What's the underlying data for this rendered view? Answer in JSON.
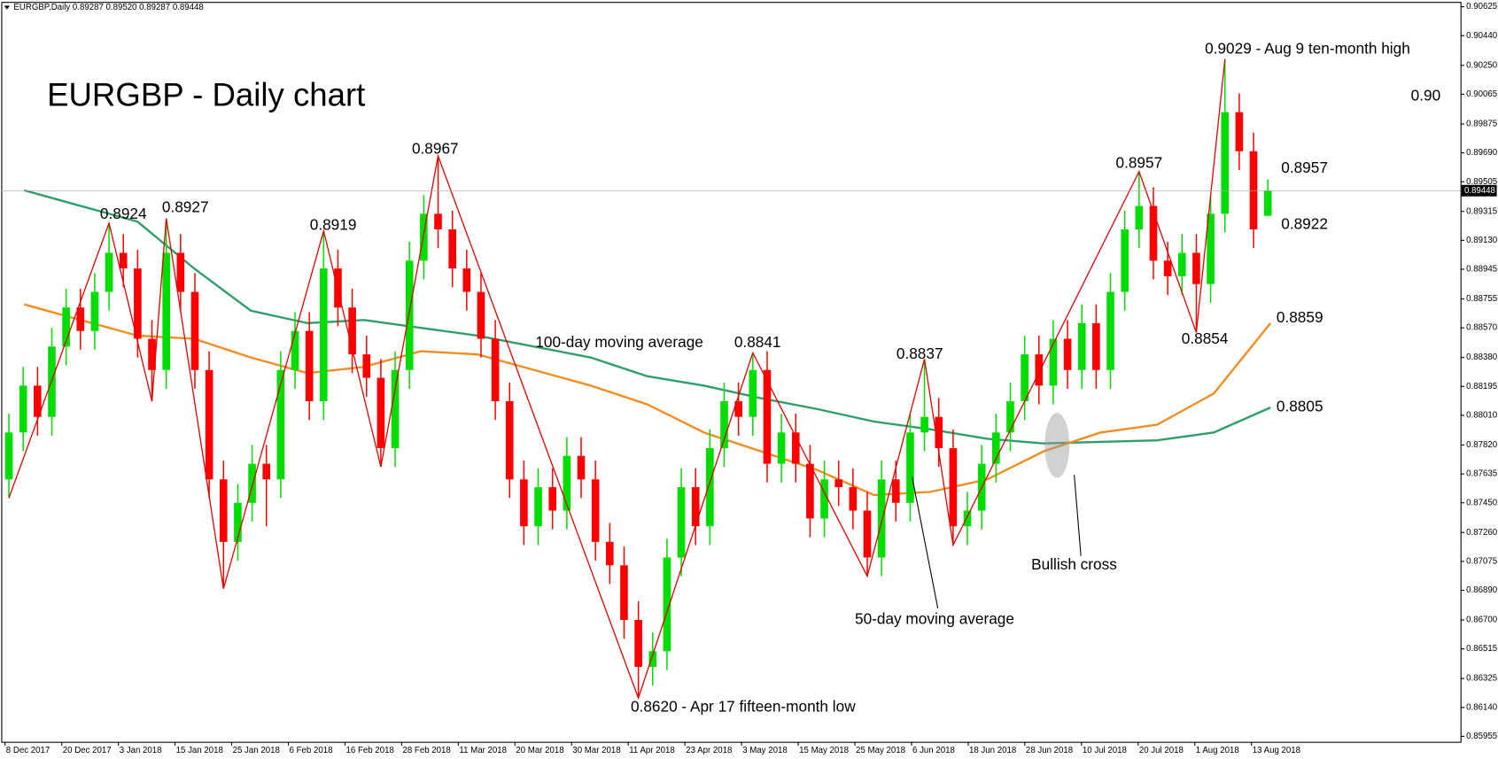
{
  "chart_data": {
    "type": "candlestick",
    "header": "EURGBP,Daily  0.89287 0.89520 0.89287 0.89448",
    "title": "EURGBP - Daily chart",
    "ylim": [
      0.8592,
      0.9065
    ],
    "yticks": [
      0.90625,
      {
        "value": 0.9044,
        "label": "0.90440"
      },
      {
        "value": 0.9025,
        "label": "0.90250"
      },
      0.90065,
      0.89875,
      {
        "value": 0.8969,
        "label": "0.89690"
      },
      0.89505,
      0.89315,
      {
        "value": 0.8913,
        "label": "0.89130"
      },
      0.88945,
      0.88755,
      {
        "value": 0.8857,
        "label": "0.88570"
      },
      {
        "value": 0.8838,
        "label": "0.88380"
      },
      0.88195,
      {
        "value": 0.8801,
        "label": "0.88010"
      },
      {
        "value": 0.8782,
        "label": "0.87820"
      },
      0.87635,
      {
        "value": 0.8745,
        "label": "0.87450"
      },
      {
        "value": 0.8726,
        "label": "0.87260"
      },
      0.87075,
      {
        "value": 0.8689,
        "label": "0.86890"
      },
      {
        "value": 0.867,
        "label": "0.86700"
      },
      0.86515,
      0.86325,
      {
        "value": 0.8614,
        "label": "0.86140"
      },
      0.85955
    ],
    "last_price": 0.89448,
    "categories": [
      "8 Dec 2017",
      "20 Dec 2017",
      "3 Jan 2018",
      "15 Jan 2018",
      "25 Jan 2018",
      "6 Feb 2018",
      "16 Feb 2018",
      "28 Feb 2018",
      "11 Mar 2018",
      "20 Mar 2018",
      "30 Mar 2018",
      "11 Apr 2018",
      "23 Apr 2018",
      "3 May 2018",
      "15 May 2018",
      "25 May 2018",
      "6 Jun 2018",
      "18 Jun 2018",
      "28 Jun 2018",
      "10 Jul 2018",
      "20 Jul 2018",
      "1 Aug 2018",
      "13 Aug 2018"
    ],
    "candles": {
      "open": [
        0.876,
        0.879,
        0.882,
        0.88,
        0.8845,
        0.887,
        0.8855,
        0.888,
        0.8905,
        0.8895,
        0.885,
        0.883,
        0.8905,
        0.888,
        0.883,
        0.876,
        0.872,
        0.8745,
        0.877,
        0.876,
        0.883,
        0.8855,
        0.881,
        0.8895,
        0.887,
        0.884,
        0.8825,
        0.878,
        0.883,
        0.89,
        0.893,
        0.892,
        0.8895,
        0.888,
        0.885,
        0.881,
        0.876,
        0.873,
        0.8755,
        0.874,
        0.8775,
        0.876,
        0.872,
        0.8705,
        0.867,
        0.864,
        0.865,
        0.871,
        0.8755,
        0.873,
        0.878,
        0.881,
        0.88,
        0.883,
        0.877,
        0.879,
        0.877,
        0.8735,
        0.876,
        0.8755,
        0.874,
        0.871,
        0.876,
        0.8745,
        0.879,
        0.88,
        0.878,
        0.873,
        0.874,
        0.877,
        0.879,
        0.881,
        0.884,
        0.882,
        0.885,
        0.883,
        0.886,
        0.883,
        0.888,
        0.892,
        0.8935,
        0.89,
        0.889,
        0.8905,
        0.8885,
        0.893,
        0.8995,
        0.897,
        0.89287
      ],
      "high": [
        0.8802,
        0.8832,
        0.8832,
        0.8857,
        0.8882,
        0.8882,
        0.8892,
        0.8924,
        0.8917,
        0.8907,
        0.8862,
        0.8927,
        0.8917,
        0.8892,
        0.8842,
        0.8772,
        0.8757,
        0.8782,
        0.8782,
        0.8842,
        0.8867,
        0.8867,
        0.8919,
        0.8907,
        0.8882,
        0.8852,
        0.8837,
        0.8842,
        0.8912,
        0.8942,
        0.8967,
        0.8932,
        0.8907,
        0.8892,
        0.8862,
        0.8822,
        0.8772,
        0.8767,
        0.8767,
        0.8787,
        0.8787,
        0.8772,
        0.8732,
        0.8717,
        0.8682,
        0.8662,
        0.8722,
        0.8767,
        0.8767,
        0.8792,
        0.8822,
        0.8822,
        0.8841,
        0.8842,
        0.8802,
        0.8802,
        0.8782,
        0.8772,
        0.8772,
        0.8767,
        0.8752,
        0.8772,
        0.8772,
        0.8802,
        0.8837,
        0.8812,
        0.8792,
        0.8752,
        0.8782,
        0.8802,
        0.8822,
        0.8852,
        0.8852,
        0.8862,
        0.8862,
        0.8872,
        0.8872,
        0.8892,
        0.8932,
        0.8957,
        0.8947,
        0.8912,
        0.8917,
        0.8917,
        0.8942,
        0.9029,
        0.9007,
        0.8982,
        0.8952
      ],
      "low": [
        0.8748,
        0.8778,
        0.8788,
        0.8788,
        0.8833,
        0.8843,
        0.8843,
        0.8868,
        0.8883,
        0.8838,
        0.881,
        0.8818,
        0.8868,
        0.8818,
        0.8748,
        0.869,
        0.8708,
        0.8733,
        0.873,
        0.8748,
        0.8818,
        0.8798,
        0.8798,
        0.8858,
        0.8828,
        0.8813,
        0.8768,
        0.8768,
        0.8818,
        0.8888,
        0.8908,
        0.8883,
        0.8868,
        0.8838,
        0.8798,
        0.8748,
        0.8718,
        0.8718,
        0.8728,
        0.8728,
        0.8748,
        0.8708,
        0.8693,
        0.8658,
        0.862,
        0.8628,
        0.8638,
        0.8698,
        0.8718,
        0.8718,
        0.8768,
        0.8788,
        0.8788,
        0.8758,
        0.8758,
        0.8758,
        0.8723,
        0.8723,
        0.8743,
        0.8728,
        0.8698,
        0.8698,
        0.8733,
        0.8733,
        0.8778,
        0.8768,
        0.8718,
        0.8718,
        0.8728,
        0.8758,
        0.8778,
        0.8798,
        0.8808,
        0.8808,
        0.8818,
        0.8818,
        0.8818,
        0.8818,
        0.8868,
        0.8908,
        0.8888,
        0.8878,
        0.8878,
        0.8854,
        0.8873,
        0.8918,
        0.8958,
        0.8908,
        0.89287
      ],
      "close": [
        0.879,
        0.882,
        0.88,
        0.8845,
        0.887,
        0.8855,
        0.888,
        0.8905,
        0.8895,
        0.885,
        0.883,
        0.8905,
        0.888,
        0.883,
        0.876,
        0.872,
        0.8745,
        0.877,
        0.876,
        0.883,
        0.8855,
        0.881,
        0.8895,
        0.887,
        0.884,
        0.8825,
        0.878,
        0.883,
        0.89,
        0.893,
        0.892,
        0.8895,
        0.888,
        0.885,
        0.881,
        0.876,
        0.873,
        0.8755,
        0.874,
        0.8775,
        0.876,
        0.872,
        0.8705,
        0.867,
        0.864,
        0.865,
        0.871,
        0.8755,
        0.873,
        0.878,
        0.881,
        0.88,
        0.883,
        0.877,
        0.879,
        0.877,
        0.8735,
        0.876,
        0.8755,
        0.874,
        0.871,
        0.876,
        0.8745,
        0.879,
        0.88,
        0.878,
        0.873,
        0.874,
        0.877,
        0.879,
        0.881,
        0.884,
        0.882,
        0.885,
        0.883,
        0.886,
        0.883,
        0.888,
        0.892,
        0.8935,
        0.89,
        0.889,
        0.8905,
        0.8885,
        0.893,
        0.8995,
        0.897,
        0.892,
        0.89448
      ]
    },
    "series": [
      {
        "name": "100-day moving average",
        "color": "#2e9e6a",
        "values": [
          0.8945,
          0.8935,
          0.8925,
          0.8895,
          0.8868,
          0.886,
          0.8862,
          0.8857,
          0.8852,
          0.8845,
          0.8838,
          0.8826,
          0.882,
          0.8812,
          0.8805,
          0.8797,
          0.8792,
          0.8786,
          0.8783,
          0.8784,
          0.8785,
          0.879,
          0.8806
        ]
      },
      {
        "name": "50-day moving average",
        "color": "#f28c1e",
        "values": [
          0.8872,
          0.8862,
          0.8852,
          0.885,
          0.8838,
          0.8828,
          0.8832,
          0.8842,
          0.884,
          0.883,
          0.882,
          0.8808,
          0.879,
          0.8778,
          0.8766,
          0.875,
          0.8752,
          0.876,
          0.8778,
          0.879,
          0.8795,
          0.8815,
          0.886
        ]
      }
    ],
    "annotations": [
      "0.8924",
      "0.8927",
      "0.8919",
      "0.8967",
      "0.8841",
      "0.8837",
      "0.8957",
      "0.9029 - Aug 9 ten-month high",
      "0.8957",
      "0.8922",
      "0.8854",
      "0.8620 - Apr 17 fifteen-month low",
      "0.8859",
      "0.8805",
      "0.90",
      "Bullish cross"
    ]
  }
}
